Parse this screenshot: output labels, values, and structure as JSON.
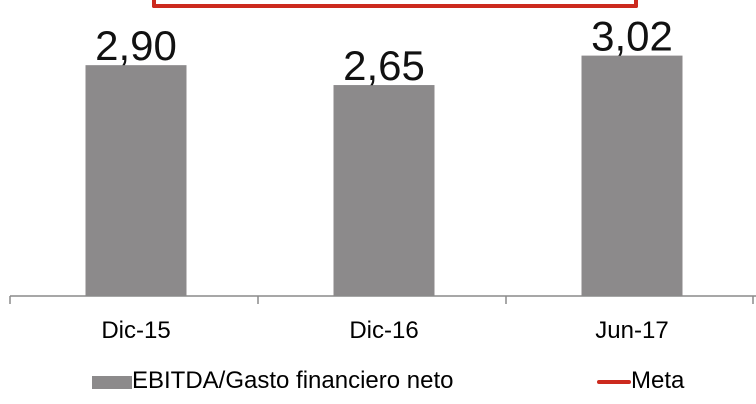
{
  "chart_data": {
    "type": "bar",
    "categories": [
      "Dic-15",
      "Dic-16",
      "Jun-17"
    ],
    "series": [
      {
        "name": "EBITDA/Gasto financiero neto",
        "values": [
          2.9,
          2.65,
          3.02
        ],
        "color": "#8c8a8b"
      },
      {
        "name": "Meta",
        "type": "line",
        "value": 3.5,
        "color": "#cc2a1e"
      }
    ],
    "data_labels": [
      "2,90",
      "2,65",
      "3,02"
    ],
    "ylim": [
      0,
      3.5
    ],
    "title": "",
    "xlabel": "",
    "ylabel": "",
    "grid": false,
    "legend_position": "bottom"
  }
}
